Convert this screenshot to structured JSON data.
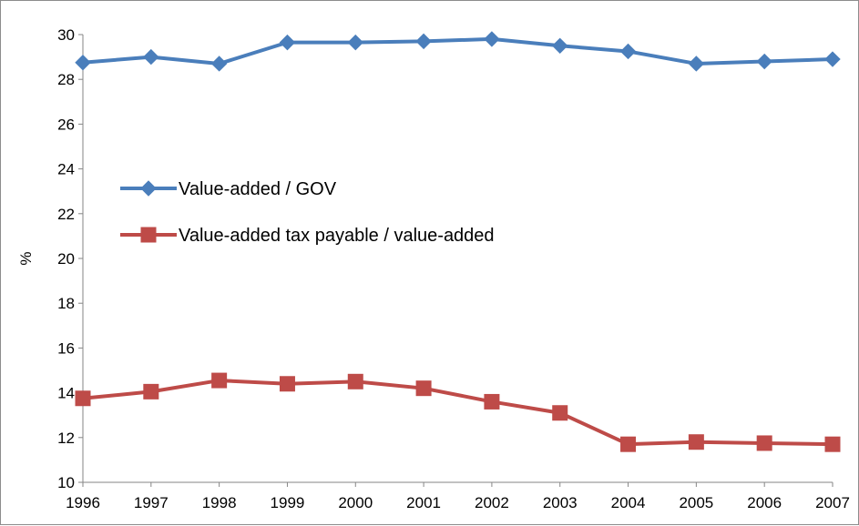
{
  "chart_data": {
    "type": "line",
    "title": "",
    "xlabel": "",
    "ylabel": "%",
    "categories": [
      "1996",
      "1997",
      "1998",
      "1999",
      "2000",
      "2001",
      "2002",
      "2003",
      "2004",
      "2005",
      "2006",
      "2007"
    ],
    "ylim": [
      10,
      30
    ],
    "yticks": [
      10,
      12,
      14,
      16,
      18,
      20,
      22,
      24,
      26,
      28,
      30
    ],
    "grid": false,
    "legend_position": "center-left",
    "series": [
      {
        "name": "Value-added / GOV",
        "color": "#4a7ebb",
        "marker": "diamond",
        "values": [
          28.75,
          29.0,
          28.7,
          29.65,
          29.65,
          29.7,
          29.8,
          29.5,
          29.25,
          28.7,
          28.8,
          28.9
        ]
      },
      {
        "name": "Value-added tax payable / value-added",
        "color": "#be4b48",
        "marker": "square",
        "values": [
          13.75,
          14.05,
          14.55,
          14.4,
          14.5,
          14.2,
          13.6,
          13.1,
          11.7,
          11.8,
          11.75,
          11.7
        ]
      }
    ]
  }
}
